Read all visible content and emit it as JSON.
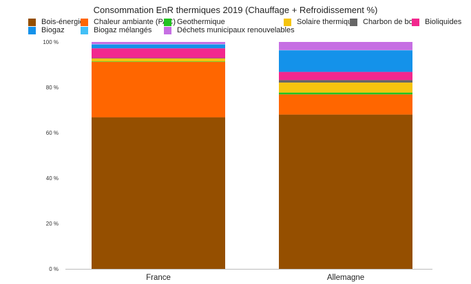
{
  "chart_data": {
    "type": "bar",
    "stacked": true,
    "title": "Consommation EnR thermiques 2019 (Chauffage + Refroidissement %)",
    "categories": [
      "France",
      "Allemagne"
    ],
    "y_tick_labels": [
      "0 %",
      "20 %",
      "40 %",
      "60 %",
      "80 %",
      "100 %"
    ],
    "ylim": [
      0,
      100
    ],
    "grid": false,
    "legend_position": "top",
    "series": [
      {
        "name": "Bois-énergie",
        "color": "#954f00",
        "values": [
          66.8,
          68.0
        ]
      },
      {
        "name": "Chaleur ambiante (PAC)",
        "color": "#ff6600",
        "values": [
          24.4,
          8.9
        ]
      },
      {
        "name": "Geothermique",
        "color": "#22c322",
        "values": [
          0.2,
          0.8
        ]
      },
      {
        "name": "Solaire thermique",
        "color": "#f5c40e",
        "values": [
          1.3,
          4.4
        ]
      },
      {
        "name": "Charbon de bois",
        "color": "#666666",
        "values": [
          0.2,
          1.1
        ]
      },
      {
        "name": "Bioliquides",
        "color": "#f2288e",
        "values": [
          4.3,
          3.6
        ]
      },
      {
        "name": "Biogaz",
        "color": "#1492ea",
        "values": [
          1.6,
          9.5
        ]
      },
      {
        "name": "Biogaz mélangés",
        "color": "#43c0f6",
        "values": [
          0.2,
          0.1
        ]
      },
      {
        "name": "Déchets municipaux renouvelables",
        "color": "#c66fe3",
        "values": [
          1.0,
          3.6
        ]
      }
    ]
  }
}
